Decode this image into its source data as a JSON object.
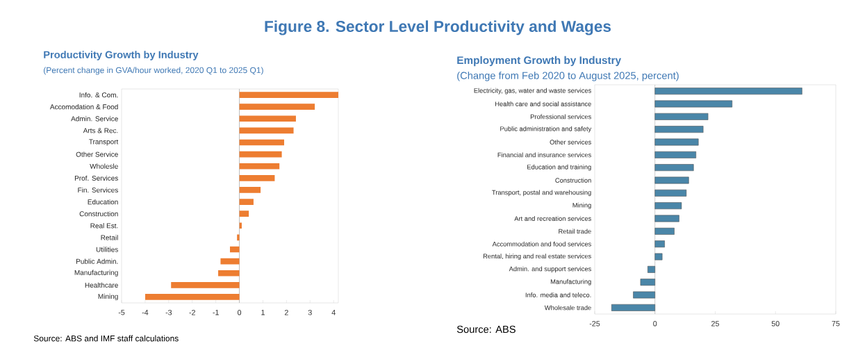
{
  "chart_data": [
    {
      "type": "other",
      "title": "Figure 8. Sector Level Productivity and Wages"
    },
    {
      "type": "bar",
      "orientation": "horizontal",
      "title": "Productivity Growth by Industry",
      "subtitle": "(Percent change in GVA/hour worked, 2020 Q1 to 2025 Q1)",
      "categories": [
        "Info. & Com.",
        "Accomodation & Food",
        "Admin. Service",
        "Arts & Rec.",
        "Transport",
        "Other Service",
        "Wholesle",
        "Prof. Services",
        "Fin. Services",
        "Education",
        "Construction",
        "Real Est.",
        "Retail",
        "Utilities",
        "Public Admin.",
        "Manufacturing",
        "Healthcare",
        "Mining"
      ],
      "values": [
        4.2,
        3.2,
        2.4,
        2.3,
        1.9,
        1.8,
        1.7,
        1.5,
        0.9,
        0.6,
        0.4,
        0.1,
        -0.1,
        -0.4,
        -0.8,
        -0.9,
        -2.9,
        -4.0
      ],
      "color": "#ed7d31",
      "xlim": [
        -5,
        4.2
      ],
      "xticks": [
        -5,
        -4,
        -3,
        -2,
        -1,
        0,
        1,
        2,
        3,
        4
      ],
      "ref_lines": [
        {
          "axis": "x",
          "value": 0,
          "color": "#bfbfbf"
        }
      ],
      "annotations": [
        "Source: ABS and IMF staff calculations"
      ]
    },
    {
      "type": "bar",
      "orientation": "horizontal",
      "title": "Employment Growth by Industry",
      "subtitle": "(Change from Feb 2020 to August 2025, percent)",
      "categories": [
        "Electricity, gas, water and waste services",
        "Health care and social assistance",
        "Professional services",
        "Public administration and safety",
        "Other services",
        "Financial and insurance services",
        "Education and training",
        "Construction",
        "Transport, postal and warehousing",
        "Mining",
        "Art and recreation services",
        "Retail trade",
        "Accommodation and food services",
        "Rental, hiring and real estate services",
        "Admin. and support services",
        "Manufacturing",
        "Info. media and teleco.",
        "Wholesale trade"
      ],
      "values": [
        61,
        32,
        22,
        20,
        18,
        17,
        16,
        14,
        13,
        11,
        10,
        8,
        4,
        3,
        -3,
        -6,
        -9,
        -18
      ],
      "color": "#4a86a8",
      "xlim": [
        -25,
        75
      ],
      "xticks": [
        -25,
        0,
        25,
        50,
        75
      ],
      "ref_lines": [
        {
          "axis": "x",
          "value": 0,
          "color": "#bfbfbf"
        }
      ],
      "annotations": [
        "Source: ABS"
      ]
    }
  ]
}
